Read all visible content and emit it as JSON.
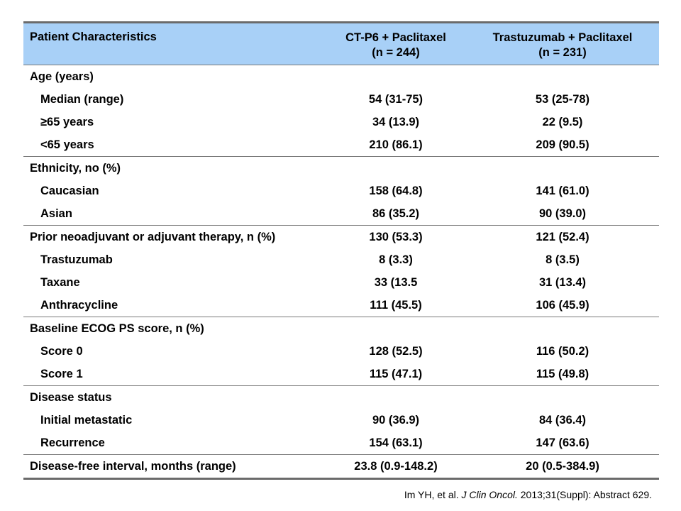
{
  "table": {
    "header": {
      "col1": "Patient Characteristics",
      "col2_line1": "CT-P6 + Paclitaxel",
      "col2_line2": "(n = 244)",
      "col3_line1": "Trastuzumab + Paclitaxel",
      "col3_line2": "(n = 231)"
    },
    "groups": [
      {
        "rows": [
          {
            "label": "Age (years)",
            "ct": "",
            "tr": "",
            "sub": false
          },
          {
            "label": "Median (range)",
            "ct": "54 (31-75)",
            "tr": "53 (25-78)",
            "sub": true
          },
          {
            "label": "≥65 years",
            "ct": "34 (13.9)",
            "tr": "22 (9.5)",
            "sub": true
          },
          {
            "label": "<65 years",
            "ct": "210 (86.1)",
            "tr": "209 (90.5)",
            "sub": true
          }
        ]
      },
      {
        "rows": [
          {
            "label": "Ethnicity, no (%)",
            "ct": "",
            "tr": "",
            "sub": false
          },
          {
            "label": "Caucasian",
            "ct": "158 (64.8)",
            "tr": "141 (61.0)",
            "sub": true
          },
          {
            "label": "Asian",
            "ct": "86 (35.2)",
            "tr": "90 (39.0)",
            "sub": true
          }
        ]
      },
      {
        "rows": [
          {
            "label": "Prior neoadjuvant or adjuvant therapy, n (%)",
            "ct": "130 (53.3)",
            "tr": "121 (52.4)",
            "sub": false
          },
          {
            "label": "Trastuzumab",
            "ct": "8 (3.3)",
            "tr": "8 (3.5)",
            "sub": true
          },
          {
            "label": "Taxane",
            "ct": "33 (13.5",
            "tr": "31 (13.4)",
            "sub": true
          },
          {
            "label": "Anthracycline",
            "ct": "111 (45.5)",
            "tr": "106 (45.9)",
            "sub": true
          }
        ]
      },
      {
        "rows": [
          {
            "label": "Baseline ECOG PS score, n (%)",
            "ct": "",
            "tr": "",
            "sub": false
          },
          {
            "label": "Score 0",
            "ct": "128 (52.5)",
            "tr": "116 (50.2)",
            "sub": true
          },
          {
            "label": "Score 1",
            "ct": "115 (47.1)",
            "tr": "115 (49.8)",
            "sub": true
          }
        ]
      },
      {
        "rows": [
          {
            "label": "Disease status",
            "ct": "",
            "tr": "",
            "sub": false
          },
          {
            "label": "Initial metastatic",
            "ct": "90 (36.9)",
            "tr": "84 (36.4)",
            "sub": true
          },
          {
            "label": "Recurrence",
            "ct": "154 (63.1)",
            "tr": "147 (63.6)",
            "sub": true
          }
        ]
      },
      {
        "rows": [
          {
            "label": "Disease-free interval, months (range)",
            "ct": "23.8 (0.9-148.2)",
            "tr": "20 (0.5-384.9)",
            "sub": false
          }
        ]
      }
    ]
  },
  "citation": {
    "authors": "Im YH, et al.",
    "journal": "J Clin Oncol.",
    "details": "2013;31(Suppl): Abstract 629."
  }
}
